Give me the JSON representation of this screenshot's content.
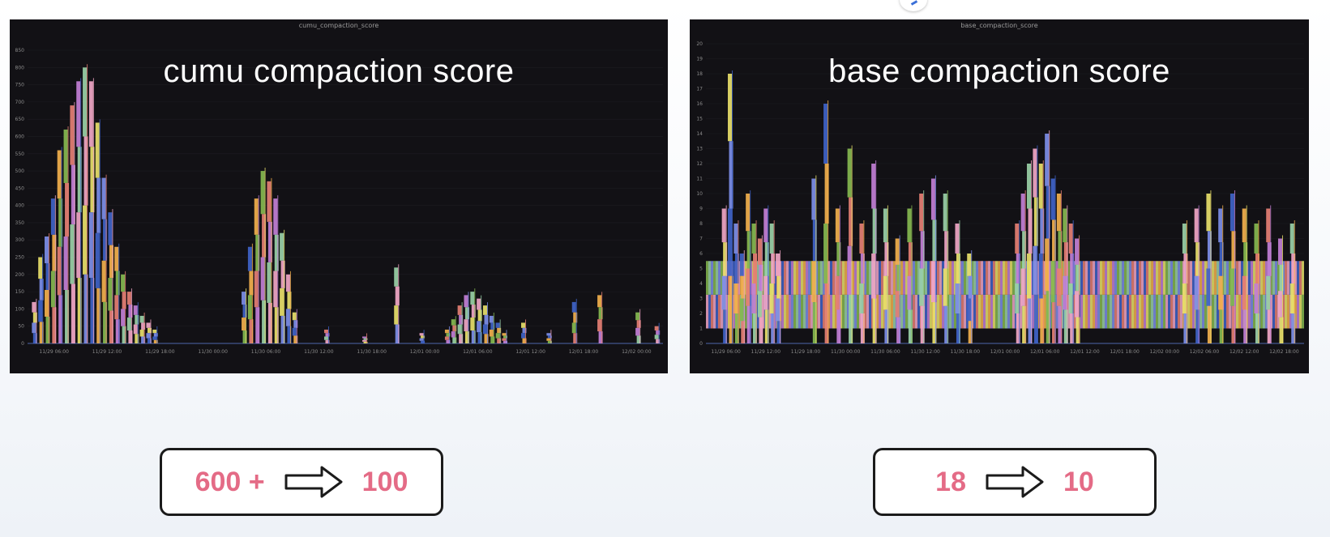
{
  "colors": {
    "panel_bg": "#121115",
    "accent_number": "#e46b86",
    "series_palette": [
      "#f0a6c5",
      "#e8e06a",
      "#7d8ee8",
      "#3f63c8",
      "#f2b04d",
      "#86b850",
      "#e57f74",
      "#c27fd6",
      "#9ad0a7"
    ]
  },
  "chart_data": [
    {
      "type": "bar",
      "title": "cumu compaction score",
      "small_title": "cumu_compaction_score",
      "x_ticks": [
        "11/29 06:00",
        "11/29 12:00",
        "11/29 18:00",
        "11/30 00:00",
        "11/30 06:00",
        "11/30 12:00",
        "11/30 18:00",
        "12/01 00:00",
        "12/01 06:00",
        "12/01 12:00",
        "12/01 18:00",
        "12/02 00:00"
      ],
      "y_ticks": [
        "0",
        "50",
        "100",
        "150",
        "200",
        "250",
        "300",
        "350",
        "400",
        "450",
        "500",
        "550",
        "600",
        "650",
        "700",
        "750",
        "800",
        "850"
      ],
      "ylim": [
        0,
        850
      ],
      "x_range": [
        0,
        100
      ],
      "series": [
        {
          "name": "",
          "x": [
            1,
            2,
            3,
            4,
            5,
            6,
            7,
            8,
            9,
            10,
            11,
            12,
            13,
            14,
            15,
            16,
            17,
            18,
            19,
            20
          ],
          "values": [
            120,
            250,
            310,
            420,
            560,
            620,
            690,
            760,
            800,
            760,
            640,
            480,
            380,
            280,
            200,
            150,
            110,
            80,
            60,
            40
          ]
        },
        {
          "name": "",
          "x": [
            34,
            35,
            36,
            37,
            38,
            39,
            40,
            41,
            42
          ],
          "values": [
            150,
            280,
            420,
            500,
            470,
            420,
            320,
            200,
            90
          ]
        },
        {
          "name": "",
          "x": [
            66,
            67,
            68,
            69,
            70,
            71,
            72,
            73,
            74,
            75
          ],
          "values": [
            40,
            70,
            110,
            140,
            150,
            130,
            110,
            80,
            60,
            30
          ]
        },
        {
          "name": "",
          "x": [
            47,
            53,
            58,
            62,
            78,
            82,
            86,
            90,
            96,
            99
          ],
          "values": [
            40,
            20,
            220,
            30,
            60,
            30,
            120,
            140,
            90,
            50
          ]
        }
      ]
    },
    {
      "type": "bar",
      "title": "base compaction score",
      "small_title": "base_compaction_score",
      "x_ticks": [
        "11/29 06:00",
        "11/29 12:00",
        "11/29 18:00",
        "11/30 00:00",
        "11/30 06:00",
        "11/30 12:00",
        "11/30 18:00",
        "12/01 00:00",
        "12/01 06:00",
        "12/01 12:00",
        "12/01 18:00",
        "12/02 00:00",
        "12/02 06:00",
        "12/02 12:00",
        "12/02 18:00"
      ],
      "y_ticks": [
        "0",
        "1",
        "2",
        "3",
        "4",
        "5",
        "6",
        "7",
        "8",
        "9",
        "10",
        "11",
        "12",
        "13",
        "14",
        "15",
        "16",
        "17",
        "18",
        "19",
        "20"
      ],
      "ylim": [
        0,
        20
      ],
      "x_range": [
        0,
        100
      ],
      "band": {
        "low": 1.0,
        "high": 5.5
      },
      "series": [
        {
          "name": "",
          "x": [
            3,
            4,
            5,
            6,
            7,
            8,
            9,
            10,
            11,
            12
          ],
          "values": [
            9,
            18,
            8,
            6,
            10,
            8,
            7,
            9,
            8,
            6
          ]
        },
        {
          "name": "",
          "x": [
            18,
            20,
            22,
            24,
            26,
            28,
            30
          ],
          "values": [
            11,
            16,
            9,
            13,
            8,
            12,
            9
          ]
        },
        {
          "name": "",
          "x": [
            32,
            34,
            36,
            38,
            40,
            42,
            44
          ],
          "values": [
            7,
            9,
            10,
            11,
            10,
            8,
            6
          ]
        },
        {
          "name": "",
          "x": [
            52,
            53,
            54,
            55,
            56,
            57,
            58,
            59,
            60,
            61,
            62
          ],
          "values": [
            8,
            10,
            12,
            13,
            12,
            14,
            11,
            10,
            9,
            8,
            7
          ]
        },
        {
          "name": "",
          "x": [
            80,
            82,
            84,
            86,
            88,
            90,
            92,
            94,
            96,
            98
          ],
          "values": [
            8,
            9,
            10,
            9,
            10,
            9,
            8,
            9,
            7,
            8
          ]
        }
      ]
    }
  ],
  "callouts": [
    {
      "from": "600 +",
      "to": "100"
    },
    {
      "from": "18",
      "to": "10"
    }
  ]
}
